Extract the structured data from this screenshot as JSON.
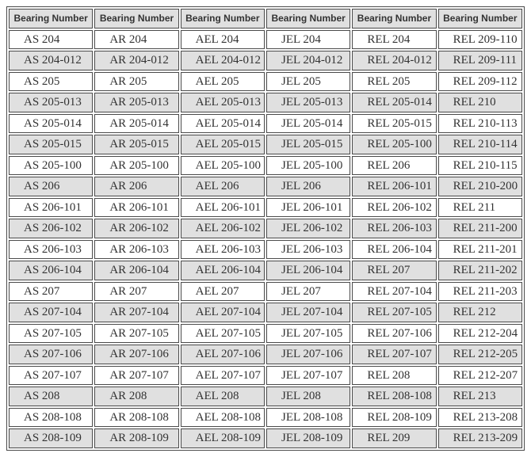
{
  "page": {
    "background": "#ffffff"
  },
  "table": {
    "name": "bearing-number-interchange-table",
    "headers": [
      "Bearing Number",
      "Bearing Number",
      "Bearing Number",
      "Bearing Number",
      "Bearing Number",
      "Bearing Number"
    ],
    "rows": [
      [
        "AS 204",
        "AR 204",
        "AEL 204",
        "JEL 204",
        "REL 204",
        "REL 209-110"
      ],
      [
        "AS 204-012",
        "AR 204-012",
        "AEL 204-012",
        "JEL 204-012",
        "REL 204-012",
        "REL 209-111"
      ],
      [
        "AS 205",
        "AR 205",
        "AEL 205",
        "JEL 205",
        "REL 205",
        "REL 209-112"
      ],
      [
        "AS 205-013",
        "AR 205-013",
        "AEL 205-013",
        "JEL 205-013",
        "REL 205-014",
        "REL 210"
      ],
      [
        "AS 205-014",
        "AR 205-014",
        "AEL 205-014",
        "JEL 205-014",
        "REL 205-015",
        "REL 210-113"
      ],
      [
        "AS 205-015",
        "AR 205-015",
        "AEL 205-015",
        "JEL 205-015",
        "REL 205-100",
        "REL 210-114"
      ],
      [
        "AS 205-100",
        "AR 205-100",
        "AEL 205-100",
        "JEL 205-100",
        "REL 206",
        "REL 210-115"
      ],
      [
        "AS 206",
        "AR 206",
        "AEL 206",
        "JEL 206",
        "REL 206-101",
        "REL 210-200"
      ],
      [
        "AS 206-101",
        "AR 206-101",
        "AEL 206-101",
        "JEL 206-101",
        "REL 206-102",
        "REL 211"
      ],
      [
        "AS 206-102",
        "AR 206-102",
        "AEL 206-102",
        "JEL 206-102",
        "REL 206-103",
        "REL 211-200"
      ],
      [
        "AS 206-103",
        "AR 206-103",
        "AEL 206-103",
        "JEL 206-103",
        "REL 206-104",
        "REL 211-201"
      ],
      [
        "AS 206-104",
        "AR 206-104",
        "AEL 206-104",
        "JEL 206-104",
        "REL 207",
        "REL 211-202"
      ],
      [
        "AS 207",
        "AR 207",
        "AEL 207",
        "JEL 207",
        "REL 207-104",
        "REL 211-203"
      ],
      [
        "AS 207-104",
        "AR 207-104",
        "AEL 207-104",
        "JEL 207-104",
        "REL 207-105",
        "REL 212"
      ],
      [
        "AS 207-105",
        "AR 207-105",
        "AEL 207-105",
        "JEL 207-105",
        "REL 207-106",
        "REL 212-204"
      ],
      [
        "AS 207-106",
        "AR 207-106",
        "AEL 207-106",
        "JEL 207-106",
        "REL 207-107",
        "REL 212-205"
      ],
      [
        "AS 207-107",
        "AR 207-107",
        "AEL 207-107",
        "JEL 207-107",
        "REL 208",
        "REL 212-207"
      ],
      [
        "AS 208",
        "AR 208",
        "AEL 208",
        "JEL 208",
        "REL 208-108",
        "REL 213"
      ],
      [
        "AS 208-108",
        "AR 208-108",
        "AEL 208-108",
        "JEL 208-108",
        "REL 208-109",
        "REL 213-208"
      ],
      [
        "AS 208-109",
        "AR 208-109",
        "AEL 208-109",
        "JEL 208-109",
        "REL 209",
        "REL 213-209"
      ]
    ],
    "colors": {
      "page_bg": "#ffffff",
      "stripe_bg": "#e0e0e0",
      "row_bg": "#ffffff",
      "header_bg": "#e0e0e0",
      "border": "#4a4a4a",
      "text": "#333333"
    }
  }
}
